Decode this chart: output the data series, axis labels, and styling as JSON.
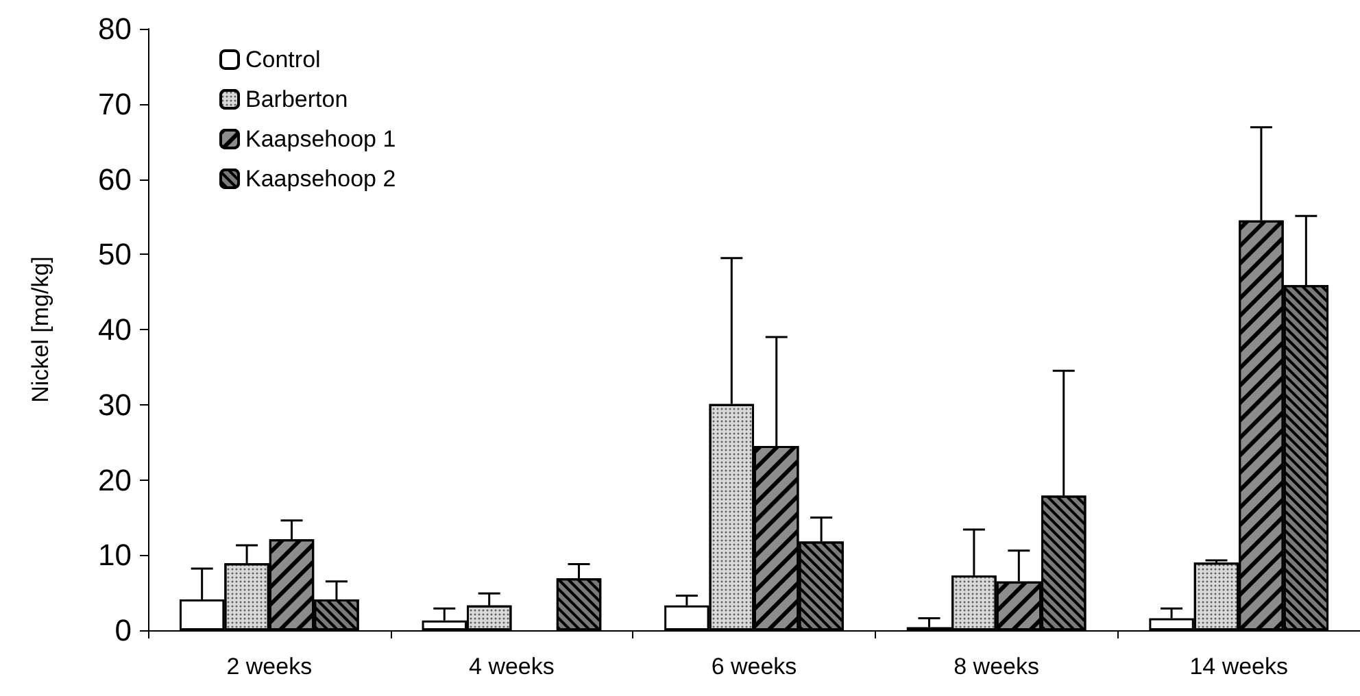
{
  "chart_data": {
    "type": "bar",
    "ylabel": "Nickel [mg/kg]",
    "categories": [
      "2 weeks",
      "4 weeks",
      "6 weeks",
      "8 weeks",
      "14 weeks"
    ],
    "series": [
      {
        "name": "Control",
        "color": "#ffffff",
        "values": [
          4.1,
          1.3,
          3.3,
          0.4,
          1.6
        ],
        "errors": [
          [
            4.1,
            8.2
          ],
          [
            1.3,
            2.9
          ],
          [
            3.3,
            4.6
          ],
          [
            0.4,
            1.6
          ],
          [
            1.6,
            2.9
          ]
        ]
      },
      {
        "name": "Barberton",
        "color": "#d9d9d9",
        "values": [
          8.9,
          3.3,
          30.1,
          7.3,
          9.0
        ],
        "errors": [
          [
            8.9,
            11.3
          ],
          [
            3.3,
            4.9
          ],
          [
            30.1,
            49.5
          ],
          [
            7.3,
            13.4
          ],
          [
            9.0,
            9.3
          ]
        ]
      },
      {
        "name": "Kaapsehoop 1",
        "color": "#8c8c8c",
        "values": [
          12.1,
          null,
          24.5,
          6.5,
          54.5
        ],
        "errors": [
          [
            12.1,
            14.6
          ],
          null,
          [
            24.5,
            39.0
          ],
          [
            6.5,
            10.6
          ],
          [
            54.5,
            66.9
          ]
        ]
      },
      {
        "name": "Kaapsehoop 2",
        "color": "#7a7a7a",
        "values": [
          4.1,
          6.9,
          11.8,
          17.9,
          45.9
        ],
        "errors": [
          [
            4.1,
            6.5
          ],
          [
            6.9,
            8.8
          ],
          [
            11.8,
            15.0
          ],
          [
            17.9,
            34.5
          ],
          [
            45.9,
            55.1
          ]
        ]
      }
    ],
    "ylim": [
      0,
      80
    ],
    "yticks": [
      0,
      10,
      20,
      30,
      40,
      50,
      60,
      70,
      80
    ],
    "grid": false,
    "legend": "top left"
  }
}
